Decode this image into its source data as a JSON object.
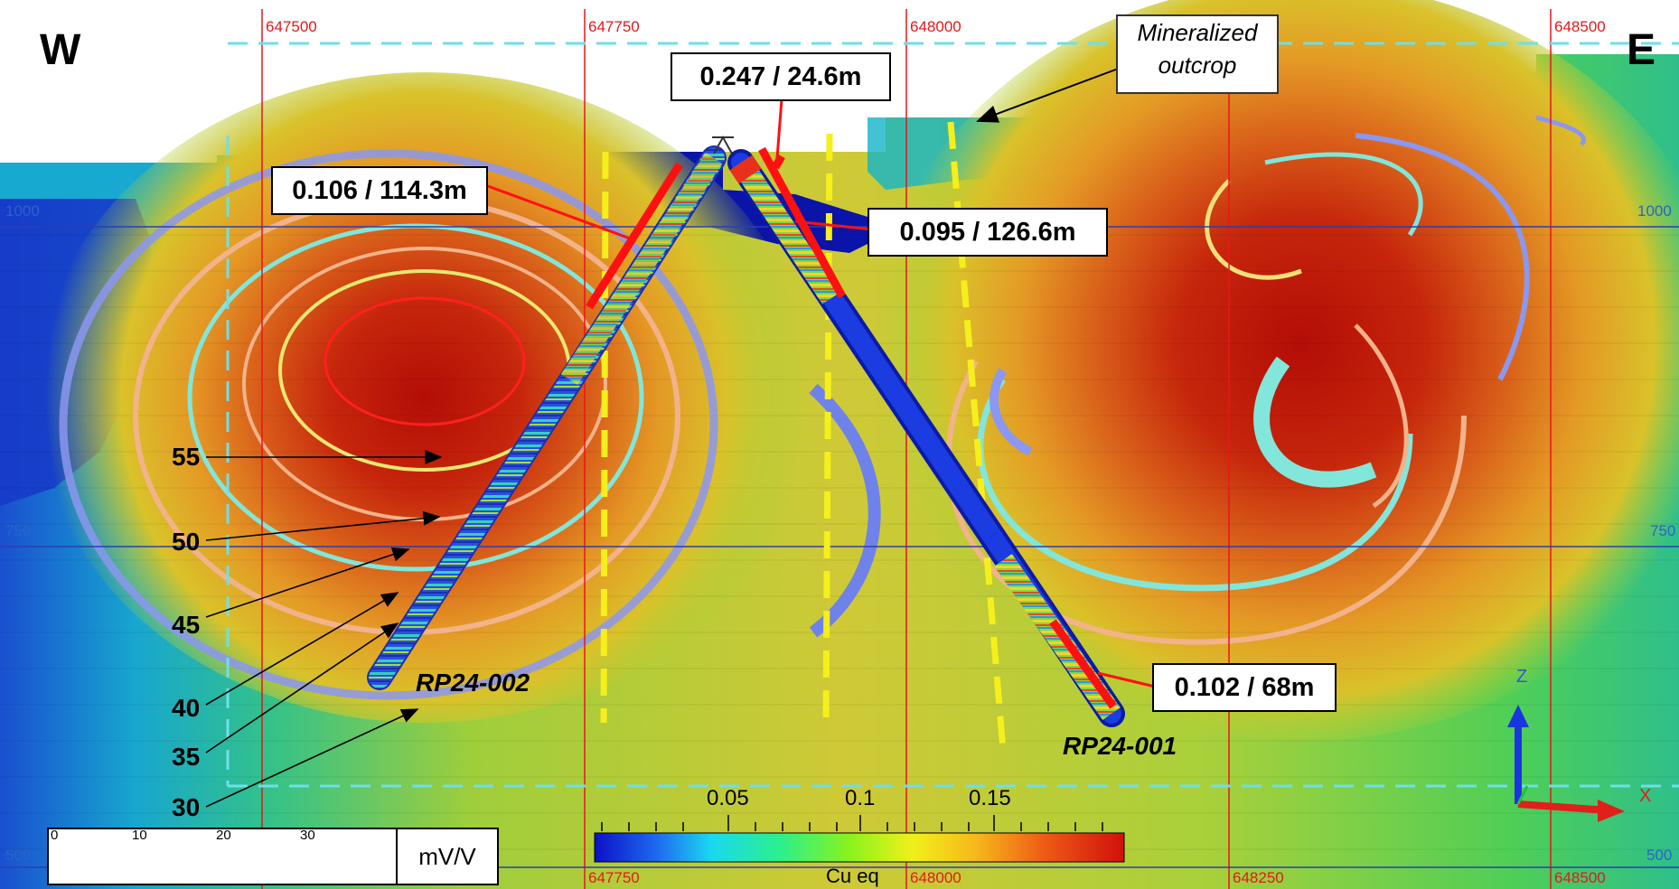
{
  "section": {
    "west": "W",
    "east": "E",
    "outcrop_label_line1": "Mineralized",
    "outcrop_label_line2": "outcrop"
  },
  "eastings_top": [
    "647500",
    "647750",
    "648000",
    "648500"
  ],
  "eastings_bottom": [
    "500",
    "647750",
    "648000",
    "648250",
    "648500",
    "500"
  ],
  "elevations": {
    "left": [
      "1000",
      "750",
      "500"
    ],
    "right": [
      "1000",
      "750",
      "500"
    ]
  },
  "intercepts": [
    {
      "text": "0.106 / 114.3m"
    },
    {
      "text": "0.247 / 24.6m"
    },
    {
      "text": "0.095 / 126.6m"
    },
    {
      "text": "0.102 / 68m"
    }
  ],
  "holes": [
    {
      "name": "RP24-002"
    },
    {
      "name": "RP24-001"
    }
  ],
  "contours": [
    "55",
    "50",
    "45",
    "40",
    "35",
    "30"
  ],
  "chargeability_legend": {
    "ticks": [
      "0",
      "10",
      "20",
      "30"
    ],
    "unit": "mV/V"
  },
  "cu_legend": {
    "ticks": [
      "0.05",
      "0.1",
      "0.15"
    ],
    "label": "Cu eq"
  },
  "axes_triad": {
    "z": "Z",
    "x": "X"
  },
  "colors": {
    "grid_easting": "#e8161a",
    "grid_elevation": "#2b3fb0",
    "fault": "#f5ef1c",
    "intercept": "#ff1010",
    "section_boundary": "#6fdfe8",
    "low": "#0b1fb0",
    "high": "#c81e0a"
  }
}
